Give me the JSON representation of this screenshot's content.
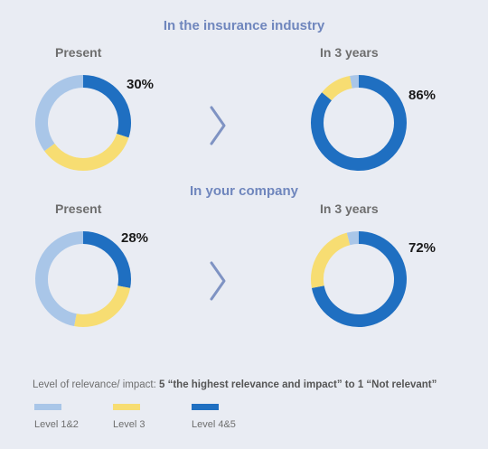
{
  "colors": {
    "level12": "#a9c6e8",
    "level3": "#f7dd72",
    "level45": "#1f6fc1",
    "title": "#6f86bd",
    "background": "#e9ecf3"
  },
  "legend": {
    "title_prefix": "Level of relevance/ impact: ",
    "title_bold": "5 “the highest relevance and impact” to 1 “Not relevant”",
    "items": [
      {
        "label": "Level 1&2",
        "color": "#a9c6e8"
      },
      {
        "label": "Level 3",
        "color": "#f7dd72"
      },
      {
        "label": "Level 4&5",
        "color": "#1f6fc1"
      }
    ]
  },
  "arrow_icon": "chevron-right-icon",
  "chart_data": [
    {
      "type": "pie",
      "subtype": "donut",
      "section": "In the insurance industry",
      "period": "Present",
      "label": "30%",
      "slices": [
        {
          "name": "Level 4&5",
          "value": 30
        },
        {
          "name": "Level 3",
          "value": 35
        },
        {
          "name": "Level 1&2",
          "value": 35
        }
      ]
    },
    {
      "type": "pie",
      "subtype": "donut",
      "section": "In the insurance industry",
      "period": "In 3 years",
      "label": "86%",
      "slices": [
        {
          "name": "Level 4&5",
          "value": 86
        },
        {
          "name": "Level 3",
          "value": 11
        },
        {
          "name": "Level 1&2",
          "value": 3
        }
      ]
    },
    {
      "type": "pie",
      "subtype": "donut",
      "section": "In your company",
      "period": "Present",
      "label": "28%",
      "slices": [
        {
          "name": "Level 4&5",
          "value": 28
        },
        {
          "name": "Level 3",
          "value": 25
        },
        {
          "name": "Level 1&2",
          "value": 47
        }
      ]
    },
    {
      "type": "pie",
      "subtype": "donut",
      "section": "In your company",
      "period": "In 3 years",
      "label": "72%",
      "slices": [
        {
          "name": "Level 4&5",
          "value": 72
        },
        {
          "name": "Level 3",
          "value": 24
        },
        {
          "name": "Level 1&2",
          "value": 4
        }
      ]
    }
  ]
}
